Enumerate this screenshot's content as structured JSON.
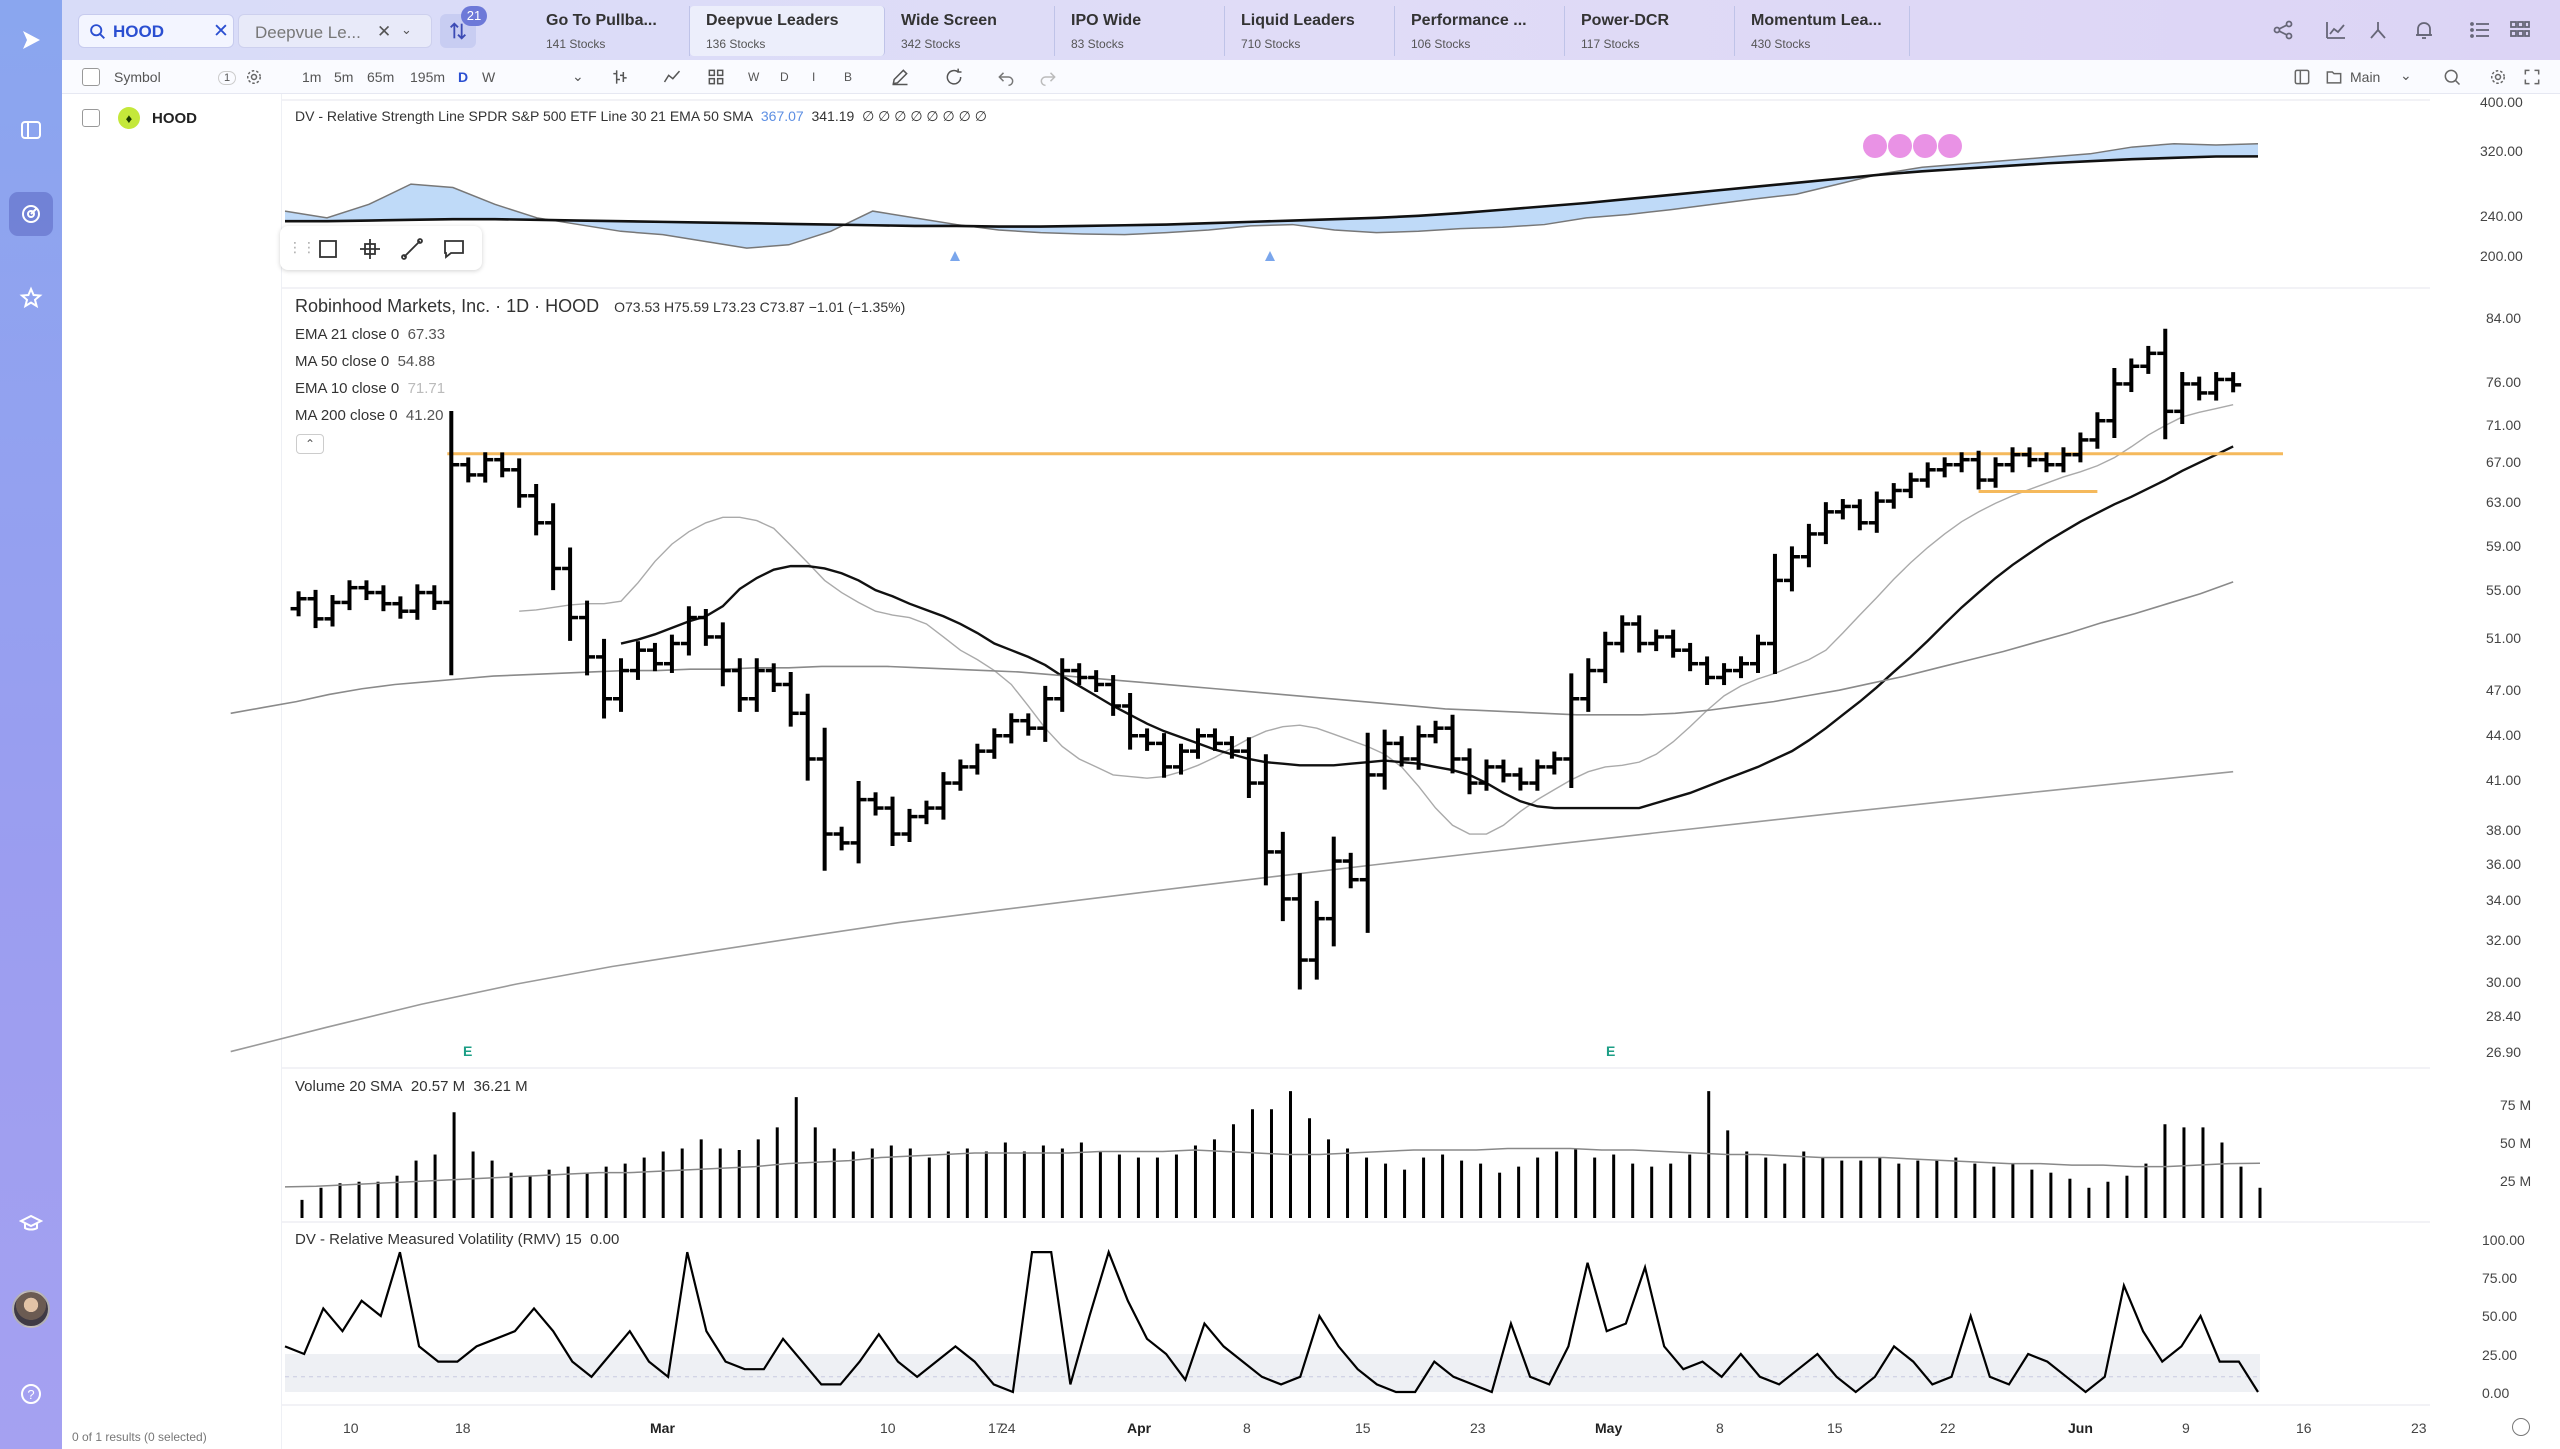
{
  "search": {
    "value": "HOOD"
  },
  "watchlist_selector": {
    "label": "Deepvue Le..."
  },
  "filter_badge": "21",
  "watchlist_tabs": [
    {
      "name": "Go To Pullba...",
      "count": "141 Stocks"
    },
    {
      "name": "Deepvue Leaders",
      "count": "136 Stocks"
    },
    {
      "name": "Wide Screen",
      "count": "342 Stocks"
    },
    {
      "name": "IPO Wide",
      "count": "83 Stocks"
    },
    {
      "name": "Liquid Leaders",
      "count": "710 Stocks"
    },
    {
      "name": "Performance ...",
      "count": "106 Stocks"
    },
    {
      "name": "Power-DCR",
      "count": "117 Stocks"
    },
    {
      "name": "Momentum Lea...",
      "count": "430 Stocks"
    }
  ],
  "symbol_header": {
    "label": "Symbol",
    "count": "1"
  },
  "intervals": [
    "1m",
    "5m",
    "65m",
    "195m",
    "D",
    "W"
  ],
  "interval_selected": "D",
  "toolbar_letters": [
    "W",
    "D",
    "I",
    "B"
  ],
  "layout_label": "Main",
  "symbol_list": [
    {
      "ticker": "HOOD"
    }
  ],
  "status": "0 of 1 results (0 selected)",
  "icons": {
    "rail": [
      "play-logo-icon",
      "watchlist-icon",
      "scanner-icon",
      "star-icon",
      "learn-icon",
      "help-icon"
    ],
    "top_right": [
      "share-icon",
      "chart-icon",
      "split-icon",
      "alert-icon",
      "list-icon",
      "grid-icon"
    ]
  },
  "colors": {
    "rs_fill": "#a9cdf5",
    "resistance_line": "#f5b95c",
    "accent": "#2b4fd1",
    "rs_dots": "#e57fe0",
    "earnings": "#1b9e85"
  },
  "legend": {
    "rs_line": {
      "text": "DV - Relative Strength Line SPDR S&P 500 ETF Line 30 21 EMA 50 SMA",
      "v1": "367.07",
      "v2": "341.19",
      "tail": "∅ ∅ ∅ ∅ ∅ ∅ ∅ ∅"
    },
    "title": "Robinhood Markets, Inc. · 1D · HOOD",
    "ohlc": "O73.53  H75.59  L73.23  C73.87  −1.01 (−1.35%)",
    "mas": [
      {
        "text": "EMA 21 close 0",
        "value": "67.33"
      },
      {
        "text": "MA 50 close 0",
        "value": "54.88"
      },
      {
        "text": "EMA 10 close 0",
        "value": "71.71"
      },
      {
        "text": "MA 200 close 0",
        "value": "41.20"
      }
    ],
    "volume": {
      "text": "Volume 20 SMA",
      "v1": "20.57 M",
      "v2": "36.21 M"
    },
    "rmv": {
      "text": "DV - Relative Measured Volatility (RMV) 15",
      "value": "0.00"
    }
  },
  "earnings_marker": "E",
  "chart_data": {
    "type": "bar",
    "subtype": "ohlc",
    "symbol": "HOOD",
    "interval": "1D",
    "price_axis_ticks": [
      "84.00",
      "76.00",
      "71.00",
      "67.00",
      "63.00",
      "59.00",
      "55.00",
      "51.00",
      "47.00",
      "44.00",
      "41.00",
      "38.00",
      "36.00",
      "34.00",
      "32.00",
      "30.00",
      "28.40",
      "26.90"
    ],
    "rs_axis_ticks": [
      "400.00",
      "320.00",
      "240.00",
      "200.00"
    ],
    "volume_axis_ticks": [
      "75 M",
      "50 M",
      "25 M"
    ],
    "rmv_axis_ticks": [
      "100.00",
      "75.00",
      "50.00",
      "25.00",
      "0.00"
    ],
    "time_axis": [
      {
        "label": "10",
        "major": false
      },
      {
        "label": "18",
        "major": false
      },
      {
        "label": "Mar",
        "major": true
      },
      {
        "label": "10",
        "major": false
      },
      {
        "label": "17",
        "major": false
      },
      {
        "label": "24",
        "major": false
      },
      {
        "label": "Apr",
        "major": true
      },
      {
        "label": "8",
        "major": false
      },
      {
        "label": "15",
        "major": false
      },
      {
        "label": "23",
        "major": false
      },
      {
        "label": "May",
        "major": true
      },
      {
        "label": "8",
        "major": false
      },
      {
        "label": "15",
        "major": false
      },
      {
        "label": "22",
        "major": false
      },
      {
        "label": "Jun",
        "major": true
      },
      {
        "label": "9",
        "major": false
      },
      {
        "label": "16",
        "major": false
      },
      {
        "label": "23",
        "major": false
      }
    ],
    "closes": [
      53.5,
      51.9,
      53.2,
      54.4,
      54.0,
      53.1,
      52.5,
      54.0,
      53.2,
      65.5,
      64.5,
      66.0,
      65.0,
      62.5,
      60.0,
      56.0,
      52.0,
      49.0,
      46.0,
      48.0,
      49.5,
      48.5,
      50.0,
      52.0,
      50.5,
      48.0,
      46.0,
      48.0,
      47.0,
      45.0,
      42.0,
      37.5,
      37.0,
      39.5,
      39.0,
      37.5,
      38.5,
      39.0,
      40.5,
      41.5,
      42.5,
      43.5,
      44.5,
      44.0,
      46.0,
      48.0,
      47.5,
      47.0,
      45.5,
      43.5,
      43.0,
      41.5,
      42.5,
      43.5,
      43.0,
      42.5,
      40.5,
      36.5,
      34.0,
      31.0,
      33.0,
      36.0,
      35.0,
      41.0,
      43.0,
      42.0,
      43.5,
      44.0,
      42.0,
      40.5,
      41.5,
      41.0,
      40.5,
      41.5,
      42.0,
      46.0,
      48.0,
      50.0,
      51.5,
      50.0,
      50.5,
      49.5,
      48.5,
      47.5,
      48.0,
      48.5,
      50.0,
      55.0,
      57.0,
      59.0,
      61.0,
      61.5,
      60.0,
      62.0,
      63.0,
      64.0,
      65.0,
      65.5,
      66.0,
      64.0,
      65.5,
      66.5,
      66.0,
      65.5,
      66.5,
      68.0,
      70.0,
      74.0,
      76.0,
      77.5,
      71.0,
      74.0,
      73.0,
      74.5,
      73.9
    ],
    "ema10": [
      52.5,
      52.6,
      52.8,
      53.0,
      53.1,
      53.1,
      53.3,
      54.8,
      56.6,
      58.1,
      59.2,
      60.0,
      60.5,
      60.5,
      60.2,
      59.5,
      58.0,
      56.5,
      55.0,
      54.0,
      53.2,
      52.5,
      52.2,
      52.0,
      51.5,
      50.5,
      49.5,
      48.8,
      48.0,
      47.0,
      45.5,
      44.0,
      42.8,
      42.0,
      41.5,
      41.0,
      40.9,
      40.8,
      40.9,
      41.2,
      41.6,
      42.1,
      42.7,
      43.3,
      43.8,
      44.1,
      44.2,
      44.0,
      43.6,
      43.2,
      42.8,
      42.3,
      41.5,
      40.3,
      39.0,
      38.0,
      37.5,
      37.5,
      38.0,
      38.8,
      39.5,
      40.1,
      40.7,
      41.2,
      41.5,
      41.6,
      41.8,
      42.3,
      43.1,
      44.1,
      45.2,
      46.2,
      46.9,
      47.4,
      47.8,
      48.3,
      48.8,
      49.5,
      50.8,
      52.2,
      53.6,
      55.1,
      56.5,
      57.8,
      59.0,
      60.1,
      61.0,
      61.8,
      62.5,
      63.1,
      63.7,
      64.3,
      64.8,
      65.4,
      66.2,
      67.3,
      68.5,
      69.5,
      70.4,
      70.9,
      71.3,
      71.71
    ],
    "ema21": [
      50.0,
      50.3,
      50.7,
      51.2,
      51.7,
      52.1,
      52.9,
      54.3,
      55.2,
      55.9,
      56.2,
      56.2,
      56.0,
      55.6,
      55.0,
      54.2,
      53.7,
      53.1,
      52.6,
      52.1,
      51.5,
      50.8,
      50.0,
      49.5,
      49.0,
      48.4,
      47.6,
      46.9,
      46.2,
      45.5,
      44.9,
      44.3,
      43.8,
      43.4,
      43.0,
      42.6,
      42.3,
      42.0,
      41.8,
      41.7,
      41.6,
      41.6,
      41.6,
      41.7,
      41.8,
      41.9,
      41.8,
      41.7,
      41.5,
      41.3,
      41.0,
      40.5,
      39.9,
      39.4,
      39.1,
      39.0,
      39.0,
      39.0,
      39.0,
      39.0,
      39.0,
      39.3,
      39.6,
      39.9,
      40.3,
      40.7,
      41.1,
      41.5,
      42.0,
      42.5,
      43.2,
      44.0,
      44.9,
      45.8,
      46.8,
      47.9,
      49.0,
      50.2,
      51.5,
      52.8,
      54.0,
      55.2,
      56.3,
      57.3,
      58.3,
      59.2,
      60.1,
      60.9,
      61.7,
      62.4,
      63.2,
      64.0,
      64.9,
      65.7,
      66.5,
      67.33
    ],
    "ma50": [
      45.0,
      45.4,
      45.8,
      46.3,
      46.7,
      47.0,
      47.2,
      47.4,
      47.6,
      47.7,
      47.8,
      47.9,
      48.0,
      48.0,
      48.1,
      48.1,
      48.2,
      48.2,
      48.3,
      48.3,
      48.3,
      48.2,
      48.1,
      48.0,
      47.9,
      47.7,
      47.5,
      47.3,
      47.1,
      46.9,
      46.7,
      46.5,
      46.3,
      46.1,
      45.9,
      45.7,
      45.5,
      45.3,
      45.2,
      45.1,
      45.0,
      44.9,
      44.9,
      44.9,
      45.0,
      45.2,
      45.5,
      45.8,
      46.2,
      46.6,
      47.1,
      47.6,
      48.2,
      48.8,
      49.4,
      50.1,
      50.8,
      51.6,
      52.3,
      53.1,
      53.9,
      54.88
    ],
    "ma200": [
      27.0,
      28.0,
      29.0,
      29.9,
      30.7,
      31.4,
      32.1,
      32.8,
      33.4,
      34.0,
      34.6,
      35.2,
      35.8,
      36.4,
      37.0,
      37.6,
      38.2,
      38.8,
      39.4,
      40.0,
      40.6,
      41.2
    ],
    "resistance_level": 66.6,
    "minor_support_level": 62.9,
    "volume_m": [
      12,
      20,
      23,
      24,
      24,
      28,
      38,
      42,
      70,
      44,
      38,
      30,
      28,
      32,
      34,
      30,
      34,
      36,
      40,
      44,
      46,
      52,
      46,
      45,
      52,
      60,
      80,
      60,
      46,
      44,
      46,
      48,
      46,
      40,
      44,
      46,
      44,
      50,
      44,
      48,
      46,
      50,
      44,
      42,
      40,
      40,
      42,
      48,
      52,
      62,
      72,
      72,
      84,
      66,
      52,
      46,
      40,
      36,
      32,
      40,
      42,
      38,
      36,
      30,
      34,
      40,
      44,
      46,
      40,
      42,
      36,
      34,
      36,
      42,
      84,
      58,
      44,
      40,
      36,
      44,
      40,
      38,
      38,
      40,
      36,
      38,
      38,
      40,
      36,
      34,
      36,
      32,
      30,
      26,
      20,
      24,
      28,
      36,
      62,
      60,
      60,
      50,
      34,
      20
    ],
    "volume_sma_m": [
      20.6,
      21,
      22,
      23,
      24,
      25,
      26,
      27,
      28,
      29,
      30,
      30,
      31,
      32,
      33,
      34,
      36,
      37,
      38,
      40,
      41,
      42,
      43,
      43,
      43,
      43,
      44,
      44,
      44,
      45,
      44,
      43,
      42,
      42,
      43,
      44,
      45,
      45,
      45,
      46,
      46,
      46,
      45,
      45,
      44,
      43,
      42,
      42,
      41,
      40,
      40,
      40,
      39,
      38,
      37,
      36,
      36,
      35,
      35,
      34,
      34,
      35,
      36,
      36.21
    ],
    "rmv": [
      30,
      25,
      55,
      40,
      60,
      50,
      92,
      30,
      20,
      20,
      30,
      35,
      40,
      55,
      40,
      20,
      10,
      25,
      40,
      20,
      10,
      92,
      40,
      20,
      15,
      15,
      35,
      20,
      5,
      5,
      20,
      38,
      20,
      10,
      20,
      30,
      20,
      5,
      0,
      92,
      92,
      5,
      50,
      92,
      60,
      35,
      25,
      8,
      45,
      30,
      20,
      10,
      5,
      10,
      50,
      30,
      15,
      5,
      0,
      0,
      20,
      10,
      5,
      0,
      45,
      10,
      5,
      30,
      85,
      40,
      45,
      82,
      30,
      15,
      20,
      10,
      25,
      10,
      5,
      15,
      25,
      10,
      0,
      10,
      30,
      20,
      5,
      10,
      50,
      10,
      5,
      25,
      20,
      10,
      0,
      10,
      70,
      40,
      20,
      30,
      50,
      20,
      20,
      0
    ],
    "rs_line": [
      260,
      250,
      270,
      300,
      295,
      270,
      250,
      240,
      230,
      225,
      215,
      205,
      210,
      230,
      260,
      250,
      240,
      232,
      228,
      226,
      225,
      228,
      232,
      238,
      240,
      232,
      228,
      230,
      234,
      236,
      240,
      250,
      255,
      262,
      270,
      278,
      285,
      300,
      315,
      325,
      330,
      335,
      340,
      345,
      355,
      360,
      358,
      360
    ],
    "rs_ema": [
      245,
      245,
      246,
      247,
      248,
      248,
      247,
      246,
      245,
      244,
      243,
      242,
      241,
      240,
      239,
      238,
      238,
      237,
      237,
      238,
      239,
      240,
      242,
      244,
      246,
      248,
      250,
      253,
      257,
      262,
      267,
      272,
      278,
      284,
      290,
      296,
      302,
      308,
      314,
      319,
      323,
      327,
      331,
      334,
      337,
      339,
      341,
      341.19
    ]
  }
}
